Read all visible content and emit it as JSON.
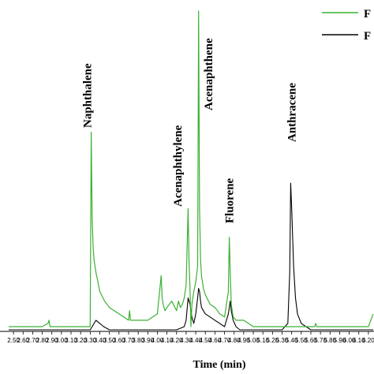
{
  "chart_data": {
    "type": "line",
    "title": "",
    "xlabel": "Time (min)",
    "ylabel": "",
    "xlim": [
      2.45,
      6.25
    ],
    "ylim": [
      0,
      1.0
    ],
    "tick_labels": [
      "2.50",
      "2.60",
      "2.70",
      "2.80",
      "2.90",
      "3.00",
      "3.10",
      "3.20",
      "3.30",
      "3.40",
      "3.50",
      "3.60",
      "3.70",
      "3.80",
      "3.90",
      "4.00",
      "4.10",
      "4.20",
      "4.30",
      "4.40",
      "4.50",
      "4.60",
      "4.70",
      "4.80",
      "4.90",
      "5.00",
      "5.10",
      "5.20",
      "5.30",
      "5.40",
      "5.50",
      "5.60",
      "5.70",
      "5.80",
      "5.90",
      "6.00",
      "6.10",
      "6.20"
    ],
    "grid": false,
    "legend_position": "top-right",
    "colors": {
      "green": "#3cb034",
      "black": "#000000"
    },
    "series": [
      {
        "name": "F",
        "color": "#3cb034",
        "x": [
          2.45,
          2.8,
          2.86,
          2.87,
          2.88,
          3.0,
          3.2,
          3.3,
          3.31,
          3.32,
          3.33,
          3.34,
          3.36,
          3.38,
          3.4,
          3.45,
          3.5,
          3.55,
          3.6,
          3.65,
          3.7,
          3.71,
          3.72,
          3.8,
          3.9,
          4.0,
          4.04,
          4.05,
          4.06,
          4.08,
          4.1,
          4.15,
          4.2,
          4.22,
          4.23,
          4.24,
          4.26,
          4.28,
          4.3,
          4.32,
          4.33,
          4.34,
          4.35,
          4.36,
          4.38,
          4.4,
          4.42,
          4.43,
          4.44,
          4.45,
          4.46,
          4.48,
          4.5,
          4.55,
          4.6,
          4.65,
          4.7,
          4.74,
          4.75,
          4.76,
          4.77,
          4.79,
          4.82,
          4.85,
          4.9,
          4.95,
          5.0,
          5.1,
          5.2,
          5.3,
          5.35,
          5.4,
          5.45,
          5.5,
          5.6,
          5.64,
          5.65,
          5.66,
          5.7,
          5.8,
          6.0,
          6.2,
          6.25
        ],
        "values": [
          0.01,
          0.01,
          0.02,
          0.03,
          0.01,
          0.01,
          0.01,
          0.01,
          0.62,
          0.35,
          0.26,
          0.22,
          0.18,
          0.15,
          0.12,
          0.09,
          0.07,
          0.06,
          0.05,
          0.04,
          0.03,
          0.06,
          0.03,
          0.03,
          0.03,
          0.05,
          0.17,
          0.1,
          0.08,
          0.06,
          0.07,
          0.09,
          0.06,
          0.09,
          0.08,
          0.07,
          0.08,
          0.1,
          0.14,
          0.38,
          0.21,
          0.13,
          0.01,
          0.08,
          0.12,
          0.15,
          0.2,
          1.0,
          0.38,
          0.22,
          0.17,
          0.13,
          0.11,
          0.08,
          0.07,
          0.05,
          0.04,
          0.12,
          0.29,
          0.18,
          0.08,
          0.04,
          0.03,
          0.03,
          0.03,
          0.02,
          0.01,
          0.01,
          0.01,
          0.01,
          0.01,
          0.01,
          0.01,
          0.01,
          0.01,
          0.01,
          0.02,
          0.01,
          0.01,
          0.01,
          0.01,
          0.01,
          0.05
        ]
      },
      {
        "name": "F",
        "color": "#000000",
        "x": [
          2.45,
          3.3,
          3.32,
          3.34,
          3.36,
          3.4,
          3.44,
          3.5,
          3.6,
          3.8,
          4.0,
          4.2,
          4.28,
          4.3,
          4.32,
          4.34,
          4.36,
          4.38,
          4.4,
          4.42,
          4.43,
          4.44,
          4.45,
          4.46,
          4.48,
          4.5,
          4.55,
          4.6,
          4.65,
          4.7,
          4.74,
          4.76,
          4.77,
          4.79,
          4.82,
          4.86,
          4.9,
          5.0,
          5.2,
          5.3,
          5.36,
          5.38,
          5.39,
          5.4,
          5.42,
          5.44,
          5.46,
          5.5,
          5.55,
          5.6,
          5.7,
          6.25
        ],
        "values": [
          0.0,
          0.0,
          0.01,
          0.02,
          0.03,
          0.02,
          0.01,
          0.0,
          0.0,
          0.0,
          0.0,
          0.0,
          0.01,
          0.03,
          0.1,
          0.08,
          0.04,
          0.02,
          0.05,
          0.1,
          0.13,
          0.12,
          0.09,
          0.07,
          0.06,
          0.05,
          0.04,
          0.03,
          0.02,
          0.01,
          0.05,
          0.09,
          0.06,
          0.03,
          0.01,
          0.0,
          0.0,
          0.0,
          0.0,
          0.0,
          0.02,
          0.18,
          0.46,
          0.38,
          0.2,
          0.1,
          0.05,
          0.02,
          0.01,
          0.0,
          0.0,
          0.0
        ]
      }
    ],
    "annotations": [
      {
        "text": "Naphthalene",
        "x": 3.31
      },
      {
        "text": "Acenaphthylene",
        "x": 4.31
      },
      {
        "text": "Acenaphthene",
        "x": 4.44
      },
      {
        "text": "Fluorene",
        "x": 4.75
      },
      {
        "text": "Anthracene",
        "x": 5.4
      }
    ]
  }
}
